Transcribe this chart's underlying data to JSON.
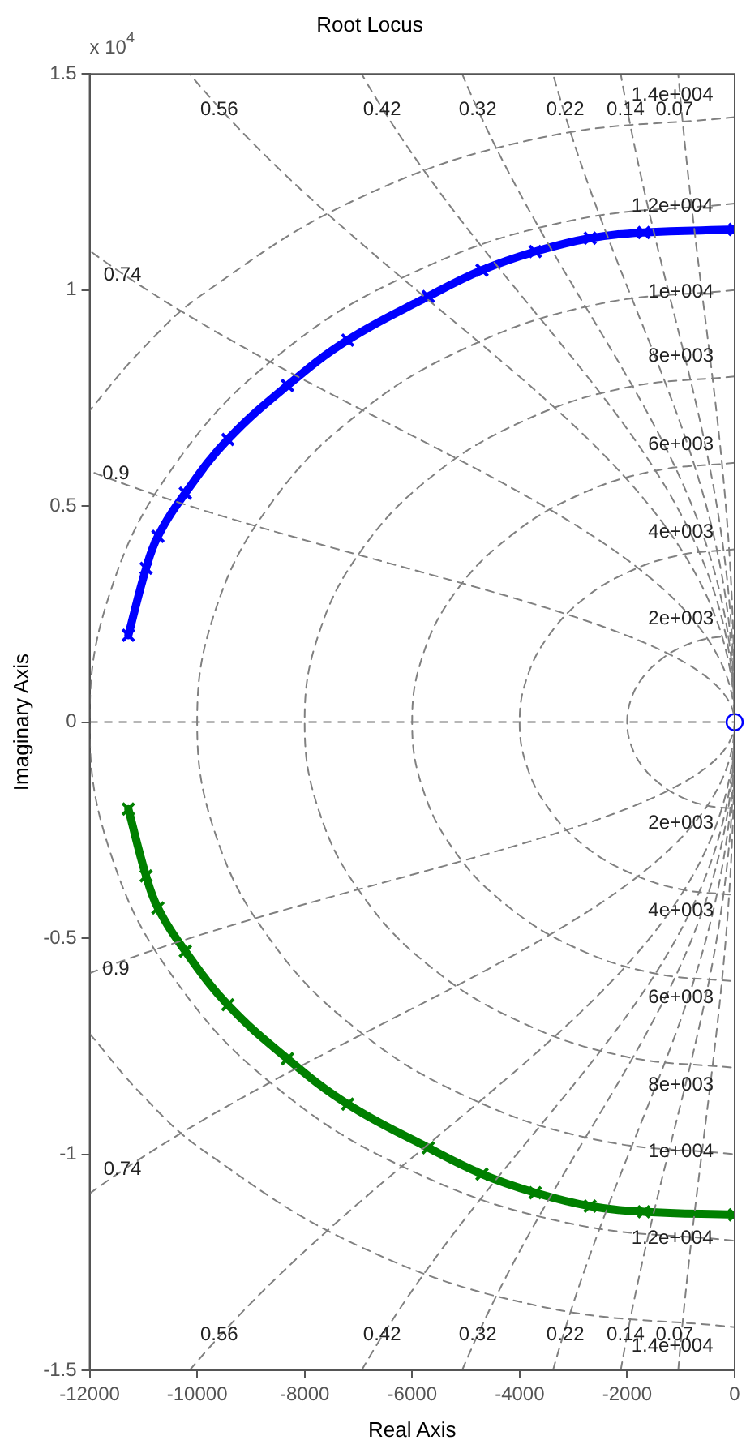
{
  "chart_data": {
    "type": "line",
    "title": "Root Locus",
    "xlabel": "Real Axis",
    "ylabel": "Imaginary Axis",
    "xlim": [
      -12000,
      0
    ],
    "xticks": [
      -12000,
      -10000,
      -8000,
      -6000,
      -4000,
      -2000,
      0
    ],
    "ylim": [
      -1.5,
      1.5
    ],
    "yticks": [
      -1.5,
      -1,
      -0.5,
      0,
      0.5,
      1,
      1.5
    ],
    "grid": false,
    "legend": false,
    "ref_lines": [
      {
        "axis": "y",
        "value": 0,
        "color": "#707070",
        "line_style": "dashed"
      }
    ],
    "series": [
      {
        "color": "#808080",
        "line_style": "dashed",
        "marker": "none",
        "x": [
          0,
          -520,
          -1000,
          -1410,
          -1730,
          -1930,
          -2000,
          -1930,
          -1730,
          -1410,
          -1000,
          -520,
          0
        ],
        "values": [
          0.2,
          0.193,
          0.173,
          0.141,
          0.1,
          0.052,
          0,
          -0.052,
          -0.1,
          -0.141,
          -0.173,
          -0.193,
          -0.2
        ]
      },
      {
        "color": "#808080",
        "line_style": "dashed",
        "marker": "none",
        "x": [
          0,
          -1040,
          -2000,
          -2830,
          -3460,
          -3860,
          -4000,
          -3860,
          -3460,
          -2830,
          -2000,
          -1040,
          0
        ],
        "values": [
          0.4,
          0.386,
          0.346,
          0.283,
          0.2,
          0.104,
          0,
          -0.104,
          -0.2,
          -0.283,
          -0.346,
          -0.386,
          -0.4
        ]
      },
      {
        "color": "#808080",
        "line_style": "dashed",
        "marker": "none",
        "x": [
          0,
          -1550,
          -3000,
          -4240,
          -5200,
          -5800,
          -6000,
          -5800,
          -5200,
          -4240,
          -3000,
          -1550,
          0
        ],
        "values": [
          0.6,
          0.58,
          0.52,
          0.424,
          0.3,
          0.155,
          0,
          -0.155,
          -0.3,
          -0.424,
          -0.52,
          -0.58,
          -0.6
        ]
      },
      {
        "color": "#808080",
        "line_style": "dashed",
        "marker": "none",
        "x": [
          0,
          -2070,
          -4000,
          -5660,
          -6930,
          -7730,
          -8000,
          -7730,
          -6930,
          -5660,
          -4000,
          -2070,
          0
        ],
        "values": [
          0.8,
          0.773,
          0.693,
          0.566,
          0.4,
          0.207,
          0,
          -0.207,
          -0.4,
          -0.566,
          -0.693,
          -0.773,
          -0.8
        ]
      },
      {
        "color": "#808080",
        "line_style": "dashed",
        "marker": "none",
        "x": [
          0,
          -2590,
          -5000,
          -7070,
          -8660,
          -9660,
          -10000,
          -9660,
          -8660,
          -7070,
          -5000,
          -2590,
          0
        ],
        "values": [
          1,
          0.966,
          0.866,
          0.707,
          0.5,
          0.259,
          0,
          -0.259,
          -0.5,
          -0.707,
          -0.866,
          -0.966,
          -1
        ]
      },
      {
        "color": "#808080",
        "line_style": "dashed",
        "marker": "none",
        "x": [
          0,
          -3110,
          -6000,
          -8490,
          -10390,
          -11590,
          -12000,
          -11590,
          -10390,
          -8490,
          -6000,
          -3110,
          0
        ],
        "values": [
          1.2,
          1.159,
          1.039,
          0.849,
          0.6,
          0.311,
          0,
          -0.311,
          -0.6,
          -0.849,
          -1.039,
          -1.159,
          -1.2
        ]
      },
      {
        "color": "#808080",
        "line_style": "dashed",
        "marker": "none",
        "x": [
          0,
          -3620,
          -7000,
          -9900,
          -11030,
          -12000
        ],
        "values": [
          1.4,
          1.352,
          1.212,
          0.99,
          0.862,
          0.721
        ]
      },
      {
        "color": "#808080",
        "line_style": "dashed",
        "marker": "none",
        "x": [
          -12000,
          -11030,
          -9900,
          -7000,
          -3620,
          0
        ],
        "values": [
          -0.721,
          -0.862,
          -0.99,
          -1.212,
          -1.352,
          -1.4
        ]
      },
      {
        "color": "#808080",
        "line_style": "dashed",
        "marker": "none",
        "x": [
          -1050,
          0,
          -1050
        ],
        "values": [
          -1.5,
          0,
          1.5
        ]
      },
      {
        "color": "#808080",
        "line_style": "dashed",
        "marker": "none",
        "x": [
          -2120,
          0,
          -2120
        ],
        "values": [
          -1.5,
          0,
          1.5
        ]
      },
      {
        "color": "#808080",
        "line_style": "dashed",
        "marker": "none",
        "x": [
          -3380,
          0,
          -3380
        ],
        "values": [
          -1.5,
          0,
          1.5
        ]
      },
      {
        "color": "#808080",
        "line_style": "dashed",
        "marker": "none",
        "x": [
          -5070,
          0,
          -5070
        ],
        "values": [
          -1.5,
          0,
          1.5
        ]
      },
      {
        "color": "#808080",
        "line_style": "dashed",
        "marker": "none",
        "x": [
          -6940,
          0,
          -6940
        ],
        "values": [
          -1.5,
          0,
          1.5
        ]
      },
      {
        "color": "#808080",
        "line_style": "dashed",
        "marker": "none",
        "x": [
          -10140,
          0,
          -10140
        ],
        "values": [
          -1.5,
          0,
          1.5
        ]
      },
      {
        "color": "#808080",
        "line_style": "dashed",
        "marker": "none",
        "x": [
          -12000,
          0,
          -12000
        ],
        "values": [
          -1.091,
          0,
          1.091
        ]
      },
      {
        "color": "#808080",
        "line_style": "dashed",
        "marker": "none",
        "x": [
          -12000,
          0,
          -12000
        ],
        "values": [
          -0.581,
          0,
          0.581
        ]
      },
      {
        "color": "#0000ff",
        "line_style": "solid",
        "marker": "cross",
        "x": [
          -11280,
          -10950,
          -10730,
          -10220,
          -9430,
          -8320,
          -7200,
          -5700,
          -4700,
          -3710,
          -2690,
          -1690,
          0
        ],
        "values": [
          0.201,
          0.356,
          0.43,
          0.53,
          0.654,
          0.779,
          0.884,
          0.985,
          1.046,
          1.089,
          1.12,
          1.133,
          1.14
        ]
      },
      {
        "color": "#008000",
        "line_style": "solid",
        "marker": "cross",
        "x": [
          -11280,
          -10950,
          -10730,
          -10220,
          -9430,
          -8320,
          -7200,
          -5700,
          -4700,
          -3710,
          -2690,
          -1690,
          0
        ],
        "values": [
          -0.201,
          -0.356,
          -0.43,
          -0.53,
          -0.654,
          -0.779,
          -0.884,
          -0.985,
          -1.046,
          -1.089,
          -1.12,
          -1.133,
          -1.14
        ]
      },
      {
        "type": "scatter",
        "color": "#0000ff",
        "marker": "circle",
        "x": [
          0
        ],
        "values": [
          0
        ]
      }
    ],
    "annotations": [
      "x 10$^{4}$",
      {
        "text": "0.56",
        "x": -9590,
        "y": 1.418
      },
      {
        "text": "0.42",
        "x": -6560,
        "y": 1.418
      },
      {
        "text": "0.32",
        "x": -4780,
        "y": 1.418
      },
      {
        "text": "0.22",
        "x": -3150,
        "y": 1.418
      },
      {
        "text": "0.14",
        "x": -2030,
        "y": 1.418
      },
      {
        "text": "0.07",
        "x": -1120,
        "y": 1.418
      },
      {
        "text": "0.74",
        "x": -11390,
        "y": 1.035
      },
      {
        "text": "0.9",
        "x": -11510,
        "y": 0.575
      },
      {
        "text": "1.4e+004",
        "x": -1160,
        "y": 1.451
      },
      {
        "text": "1.2e+004",
        "x": -1160,
        "y": 1.194
      },
      {
        "text": "1e+004",
        "x": -1000,
        "y": 0.995
      },
      {
        "text": "8e+003",
        "x": -1000,
        "y": 0.847
      },
      {
        "text": "6e+003",
        "x": -1000,
        "y": 0.642
      },
      {
        "text": "4e+003",
        "x": -1000,
        "y": 0.44
      },
      {
        "text": "2e+003",
        "x": -1000,
        "y": 0.239
      },
      {
        "text": "2e+003",
        "x": -1000,
        "y": -0.235
      },
      {
        "text": "4e+003",
        "x": -1000,
        "y": -0.437
      },
      {
        "text": "6e+003",
        "x": -1000,
        "y": -0.638
      },
      {
        "text": "8e+003",
        "x": -1000,
        "y": -0.84
      },
      {
        "text": "1e+004",
        "x": -1000,
        "y": -0.995
      },
      {
        "text": "1.2e+004",
        "x": -1160,
        "y": -1.194
      },
      {
        "text": "1.4e+004",
        "x": -1160,
        "y": -1.444
      },
      {
        "text": "0.74",
        "x": -11390,
        "y": -1.035
      },
      {
        "text": "0.9",
        "x": -11510,
        "y": -0.571
      },
      {
        "text": "0.56",
        "x": -9590,
        "y": -1.418
      },
      {
        "text": "0.42",
        "x": -6560,
        "y": -1.418
      },
      {
        "text": "0.32",
        "x": -4780,
        "y": -1.418
      },
      {
        "text": "0.22",
        "x": -3150,
        "y": -1.418
      },
      {
        "text": "0.14",
        "x": -2030,
        "y": -1.418
      },
      {
        "text": "0.07",
        "x": -1120,
        "y": -1.418
      }
    ]
  }
}
